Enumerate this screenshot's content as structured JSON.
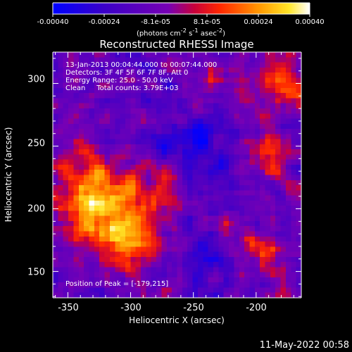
{
  "colorbar": {
    "ticks": [
      "-0.00040",
      "-0.00024",
      "-8.1e-05",
      "8.1e-05",
      "0.00024",
      "0.00040"
    ],
    "units_text": "(photons cm",
    "units_exp1": "-2",
    "units_mid": " s",
    "units_exp2": "-1",
    "units_mid2": " asec",
    "units_exp3": "-2",
    "units_end": ")",
    "range": [
      -0.0004,
      0.0004
    ],
    "colormap": "blue-purple-red-orange-yellow-white"
  },
  "chart_data": {
    "type": "heatmap",
    "title": "Reconstructed RHESSI Image",
    "xlabel": "Heliocentric X (arcsec)",
    "ylabel": "Heliocentric Y (arcsec)",
    "xlim": [
      -362,
      -164
    ],
    "ylim": [
      129,
      325
    ],
    "xticks": [
      -350,
      -300,
      -250,
      -200
    ],
    "yticks": [
      150,
      200,
      250,
      300
    ],
    "annotations": [
      "13-Jan-2013 00:04:44.000 to 00:07:44.000",
      "Detectors: 3F 4F 5F 6F 7F 8F, Att 0",
      "Energy Range: 25.0 - 50.0 keV",
      "Clean     Total counts: 3.79E+03"
    ],
    "peak_label": "Position of Peak = [-179,215]",
    "peak": [
      -179,
      215
    ]
  },
  "footer": {
    "timestamp": "11-May-2022 00:58"
  }
}
